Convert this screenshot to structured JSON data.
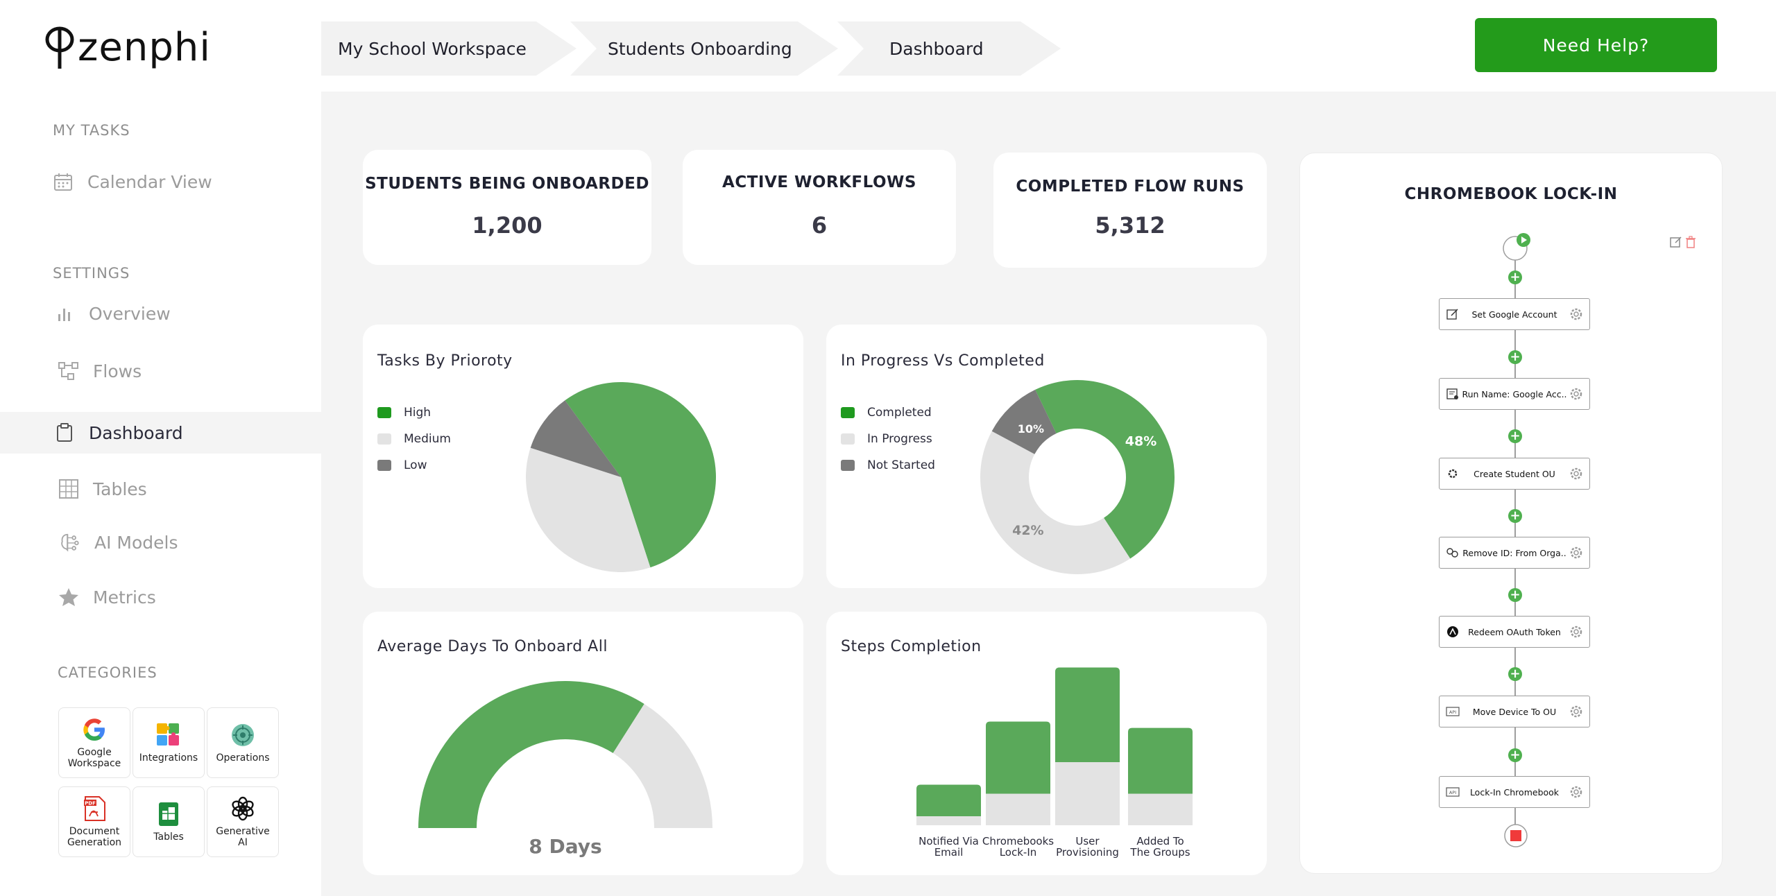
{
  "brand": {
    "name": "zenphi"
  },
  "breadcrumb": [
    "My School Workspace",
    "Students Onboarding",
    "Dashboard"
  ],
  "header": {
    "help_label": "Need Help?"
  },
  "colors": {
    "accent": "#239b1b",
    "chart_green": "#5aa95a",
    "chart_light": "#e3e3e3",
    "chart_dark": "#7a7a7a",
    "legend_green": "#1f9a1f",
    "stop_red": "#f03a3a"
  },
  "sidebar": {
    "my_tasks_label": "MY TASKS",
    "calendar_label": "Calendar View",
    "settings_label": "SETTINGS",
    "items": [
      {
        "label": "Overview",
        "icon": "bar-chart-icon"
      },
      {
        "label": "Flows",
        "icon": "flows-icon"
      },
      {
        "label": "Dashboard",
        "icon": "clipboard-icon",
        "active": true
      },
      {
        "label": "Tables",
        "icon": "table-icon"
      },
      {
        "label": "AI Models",
        "icon": "ai-models-icon"
      },
      {
        "label": "Metrics",
        "icon": "star-icon"
      }
    ],
    "categories_label": "CATEGORIES",
    "categories": [
      {
        "label": "Google\nWorkspace",
        "icon": "google-icon"
      },
      {
        "label": "Integrations",
        "icon": "puzzle-icon"
      },
      {
        "label": "Operations",
        "icon": "operations-icon"
      },
      {
        "label": "Document\nGeneration",
        "icon": "pdf-icon"
      },
      {
        "label": "Tables",
        "icon": "sheets-icon"
      },
      {
        "label": "Generative\nAI",
        "icon": "openai-icon"
      }
    ]
  },
  "stats": [
    {
      "title": "STUDENTS BEING ONBOARDED",
      "value": "1,200"
    },
    {
      "title": "ACTIVE WORKFLOWS",
      "value": "6"
    },
    {
      "title": "COMPLETED FLOW RUNS",
      "value": "5,312"
    }
  ],
  "chart_data": [
    {
      "type": "pie",
      "title": "Tasks By Prioroty",
      "legend": [
        "High",
        "Medium",
        "Low"
      ],
      "values": [
        55,
        35,
        10
      ]
    },
    {
      "type": "pie",
      "title": "In Progress Vs Completed",
      "legend": [
        "Completed",
        "In Progress",
        "Not Started"
      ],
      "values": [
        48,
        42,
        10
      ],
      "labels": [
        "48%",
        "42%",
        "10%"
      ],
      "donut": true
    },
    {
      "type": "gauge",
      "title": "Average Days To Onboard All",
      "value_label": "8 Days",
      "fraction": 0.68
    },
    {
      "type": "bar",
      "title": "Steps Completion",
      "categories": [
        "Notified Via Email",
        "Chromebooks Lock-In",
        "User Provisioning",
        "Added To The Groups"
      ],
      "series": [
        {
          "values": [
            10,
            35,
            70,
            35
          ]
        },
        {
          "values": [
            35,
            80,
            105,
            73
          ]
        }
      ],
      "ylim": [
        0,
        190
      ]
    }
  ],
  "flow": {
    "title": "CHROMEBOOK LOCK-IN",
    "steps": [
      {
        "label": "Set Google Account",
        "icon": "edit-icon"
      },
      {
        "label": "Run Name: Google Acc..",
        "icon": "run-icon"
      },
      {
        "label": "Create Student OU",
        "icon": "gear-small-icon"
      },
      {
        "label": "Remove ID: From Orga..",
        "icon": "link-icon"
      },
      {
        "label": "Redeem OAuth Token",
        "icon": "oauth-icon"
      },
      {
        "label": "Move Device To OU",
        "icon": "api-icon"
      },
      {
        "label": "Lock-In Chromebook",
        "icon": "api-icon"
      }
    ]
  }
}
